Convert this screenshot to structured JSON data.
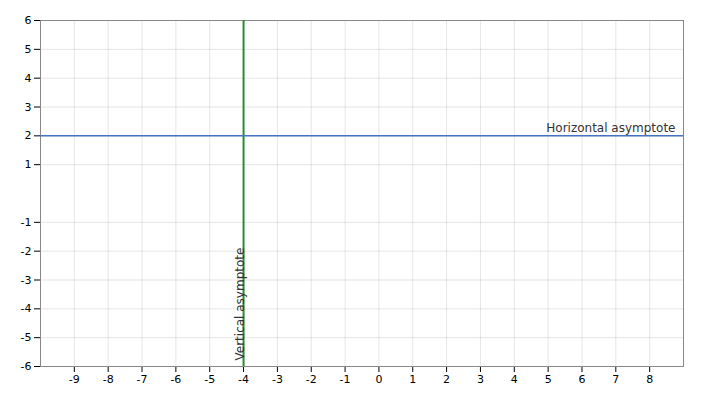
{
  "chart_data": {
    "type": "asymptotes",
    "xlim": [
      -10,
      9
    ],
    "ylim": [
      -6,
      6
    ],
    "xticks": [
      -9,
      -8,
      -7,
      -6,
      -5,
      -4,
      -3,
      -2,
      -1,
      0,
      1,
      2,
      3,
      4,
      5,
      6,
      7,
      8
    ],
    "yticks": [
      -6,
      -5,
      -4,
      -3,
      -2,
      -1,
      1,
      2,
      3,
      4,
      5,
      6
    ],
    "grid": true,
    "vertical_lines": [
      {
        "x": -4,
        "color": "#2d8b2d",
        "label": "Vertical asymptote"
      }
    ],
    "horizontal_lines": [
      {
        "y": 2,
        "color": "#4472c4",
        "label": "Horizontal asymptote"
      }
    ]
  }
}
